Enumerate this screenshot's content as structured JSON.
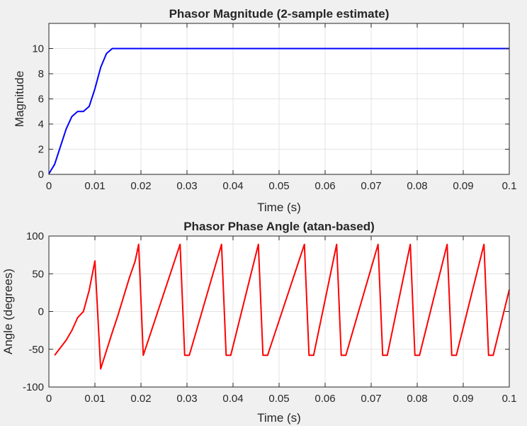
{
  "chart_data": [
    {
      "type": "line",
      "title": "Phasor Magnitude (2-sample estimate)",
      "xlabel": "Time (s)",
      "ylabel": "Magnitude",
      "xlim": [
        0,
        0.1
      ],
      "ylim": [
        0,
        12
      ],
      "xticks": [
        0,
        0.01,
        0.02,
        0.03,
        0.04,
        0.05,
        0.06,
        0.07,
        0.08,
        0.09,
        0.1
      ],
      "xtick_labels": [
        "0",
        "0.01",
        "0.02",
        "0.03",
        "0.04",
        "0.05",
        "0.06",
        "0.07",
        "0.08",
        "0.09",
        "0.1"
      ],
      "yticks": [
        0,
        2,
        4,
        6,
        8,
        10
      ],
      "ytick_labels": [
        "0",
        "2",
        "4",
        "6",
        "8",
        "10"
      ],
      "grid": true,
      "series": [
        {
          "color": "#0000ff",
          "x": [
            0,
            0.00125,
            0.0025,
            0.00375,
            0.005,
            0.00625,
            0.0075,
            0.00875,
            0.01,
            0.01125,
            0.0125,
            0.01375,
            0.015,
            0.02,
            0.03,
            0.04,
            0.05,
            0.06,
            0.07,
            0.08,
            0.09,
            0.1
          ],
          "y": [
            0.05,
            0.8,
            2.2,
            3.6,
            4.6,
            5.0,
            5.0,
            5.4,
            6.8,
            8.5,
            9.6,
            10.0,
            10.0,
            10.0,
            10.0,
            10.0,
            10.0,
            10.0,
            10.0,
            10.0,
            10.0,
            10.0
          ]
        }
      ]
    },
    {
      "type": "line",
      "title": "Phasor Phase Angle (atan-based)",
      "xlabel": "Time (s)",
      "ylabel": "Angle (degrees)",
      "xlim": [
        0,
        0.1
      ],
      "ylim": [
        -100,
        100
      ],
      "xticks": [
        0,
        0.01,
        0.02,
        0.03,
        0.04,
        0.05,
        0.06,
        0.07,
        0.08,
        0.09,
        0.1
      ],
      "xtick_labels": [
        "0",
        "0.01",
        "0.02",
        "0.03",
        "0.04",
        "0.05",
        "0.06",
        "0.07",
        "0.08",
        "0.09",
        "0.1"
      ],
      "yticks": [
        -100,
        -50,
        0,
        50,
        100
      ],
      "ytick_labels": [
        "-100",
        "-50",
        "0",
        "50",
        "100"
      ],
      "grid": true,
      "series": [
        {
          "color": "#ff0000",
          "x": [
            0.00125,
            0.0025,
            0.00375,
            0.005,
            0.00625,
            0.0075,
            0.00875,
            0.01,
            0.01125,
            0.0125,
            0.01375,
            0.015,
            0.01625,
            0.0175,
            0.01875,
            0.0195,
            0.0205,
            0.0285,
            0.0295,
            0.0305,
            0.0375,
            0.0385,
            0.0395,
            0.0455,
            0.0465,
            0.0475,
            0.0555,
            0.0565,
            0.0575,
            0.0625,
            0.0635,
            0.0645,
            0.0715,
            0.0725,
            0.0735,
            0.0785,
            0.0795,
            0.0805,
            0.0865,
            0.0875,
            0.0885,
            0.0945,
            0.0955,
            0.0965,
            0.1
          ],
          "y": [
            -58,
            -48,
            -38,
            -25,
            -8,
            0,
            28,
            67,
            -76,
            -52,
            -28,
            -5,
            20,
            45,
            67,
            89,
            -58,
            89,
            -58,
            -58,
            89,
            -58,
            -58,
            89,
            -58,
            -58,
            89,
            -58,
            -58,
            89,
            -58,
            -58,
            89,
            -58,
            -58,
            89,
            -58,
            -58,
            89,
            -58,
            -58,
            89,
            -58,
            -58,
            29
          ]
        }
      ]
    }
  ]
}
